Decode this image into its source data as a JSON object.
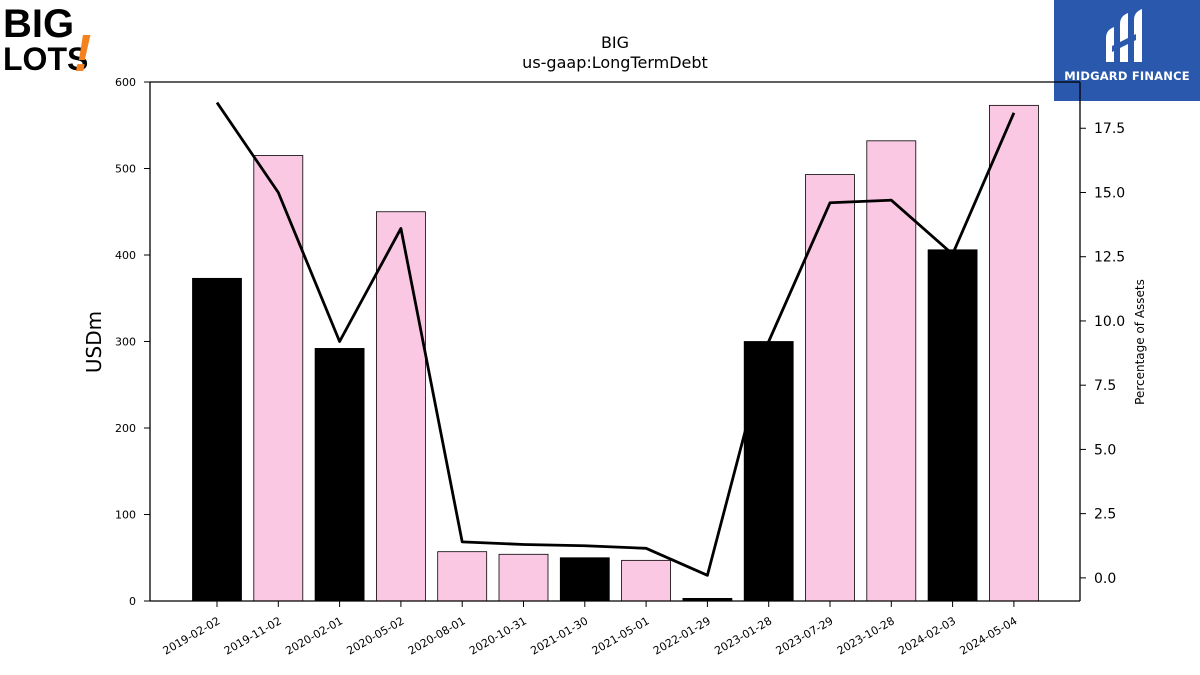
{
  "logos": {
    "left_text_top": "BIG",
    "left_text_bottom": "LOTS",
    "left_mark": "!",
    "right_name": "MIDGARD FINANCE"
  },
  "colors": {
    "bar_dark": "#000000",
    "bar_pink": "#fbc8e3",
    "line": "#000000",
    "brand_blue": "#2a58ad",
    "big_lots_orange": "#f6821f"
  },
  "chart_data": {
    "type": "bar",
    "title": "BIG",
    "subtitle": "us-gaap:LongTermDebt",
    "ylabel": "USDm",
    "y2label": "Percentage of Assets",
    "ylim": [
      0,
      600
    ],
    "y2lim": [
      -0.9,
      19.3
    ],
    "yticks": [
      "0",
      "100",
      "200",
      "300",
      "400",
      "500",
      "600"
    ],
    "y2ticks": [
      "0.0",
      "2.5",
      "5.0",
      "7.5",
      "10.0",
      "12.5",
      "15.0",
      "17.5"
    ],
    "categories": [
      "2019-02-02",
      "2019-11-02",
      "2020-02-01",
      "2020-05-02",
      "2020-08-01",
      "2020-10-31",
      "2021-01-30",
      "2021-05-01",
      "2022-01-29",
      "2023-01-28",
      "2023-07-29",
      "2023-10-28",
      "2024-02-03",
      "2024-05-04"
    ],
    "values": [
      373,
      515,
      292,
      450,
      57,
      54,
      50,
      47,
      3,
      300,
      493,
      532,
      406,
      573
    ],
    "bar_colors": [
      "dark",
      "pink",
      "dark",
      "pink",
      "pink",
      "pink",
      "dark",
      "pink",
      "dark",
      "dark",
      "pink",
      "pink",
      "dark",
      "pink"
    ],
    "pct_of_assets": [
      18.5,
      15.0,
      9.2,
      13.6,
      1.4,
      1.3,
      1.25,
      1.15,
      0.1,
      9.2,
      14.6,
      14.7,
      12.6,
      18.1
    ],
    "grid": false,
    "legend": "none"
  }
}
